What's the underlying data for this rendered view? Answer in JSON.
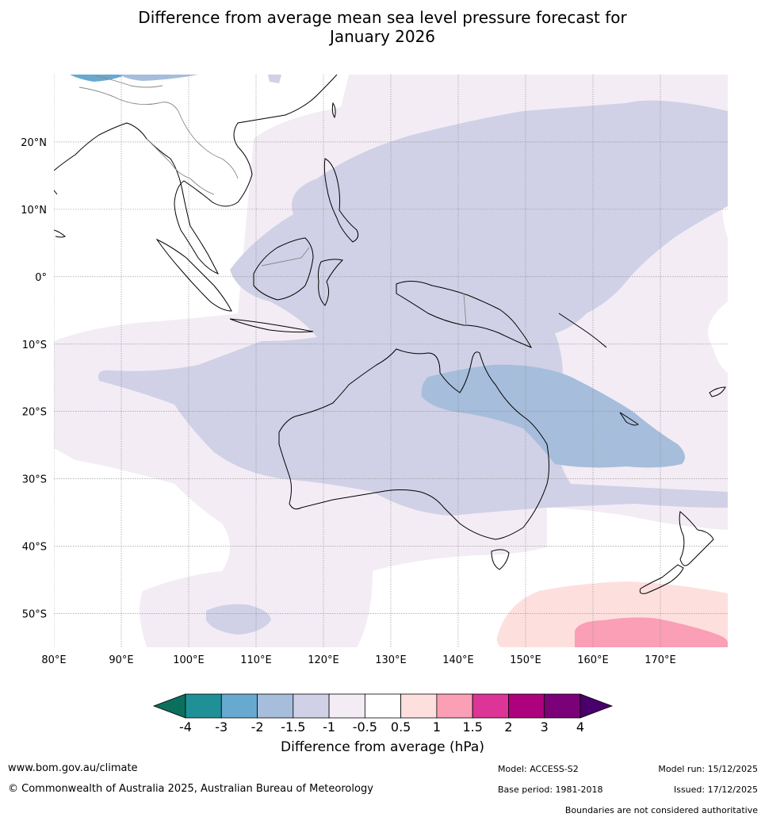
{
  "title_line1": "Difference from average mean sea level pressure forecast for",
  "title_line2": "January 2026",
  "map": {
    "lat_labels": [
      "20°N",
      "10°N",
      "0°",
      "10°S",
      "20°S",
      "30°S",
      "40°S",
      "50°S"
    ],
    "lat_values": [
      20,
      10,
      0,
      -10,
      -20,
      -30,
      -40,
      -50
    ],
    "lon_labels": [
      "80°E",
      "90°E",
      "100°E",
      "110°E",
      "120°E",
      "130°E",
      "140°E",
      "150°E",
      "160°E",
      "170°E"
    ],
    "lon_values": [
      80,
      90,
      100,
      110,
      120,
      130,
      140,
      150,
      160,
      170
    ],
    "lat_range": [
      -55,
      30
    ],
    "lon_range": [
      80,
      180
    ],
    "colors": {
      "neg_0_5_to_1": "#f3ecf5",
      "neg_1_to_1_5": "#d0d1e6",
      "neg_1_5_to_2": "#a6bddb",
      "neg_2_to_3": "#67a9cf",
      "pos_0_5_to_1": "#fde0dd",
      "pos_1_to_1_5": "#fa9fb5"
    }
  },
  "colorbar": {
    "tick_labels": [
      "-4",
      "-3",
      "-2",
      "-1.5",
      "-1",
      "-0.5",
      "0.5",
      "1",
      "1.5",
      "2",
      "3",
      "4"
    ],
    "colors": [
      "#0b6f5e",
      "#1f9196",
      "#67a9cf",
      "#a6bddb",
      "#d0d1e6",
      "#f3ecf5",
      "#ffffff",
      "#fde0dd",
      "#fa9fb5",
      "#dd3497",
      "#ae017e",
      "#7a0177",
      "#49006a"
    ],
    "title": "Difference from average (hPa)"
  },
  "footer": {
    "website": "www.bom.gov.au/climate",
    "copyright": "© Commonwealth of Australia 2025, Australian Bureau of Meteorology",
    "model": "Model: ACCESS-S2",
    "base_period": "Base period: 1981-2018",
    "model_run": "Model run: 15/12/2025",
    "issued": "Issued: 17/12/2025",
    "disclaimer": "Boundaries are not considered authoritative"
  }
}
